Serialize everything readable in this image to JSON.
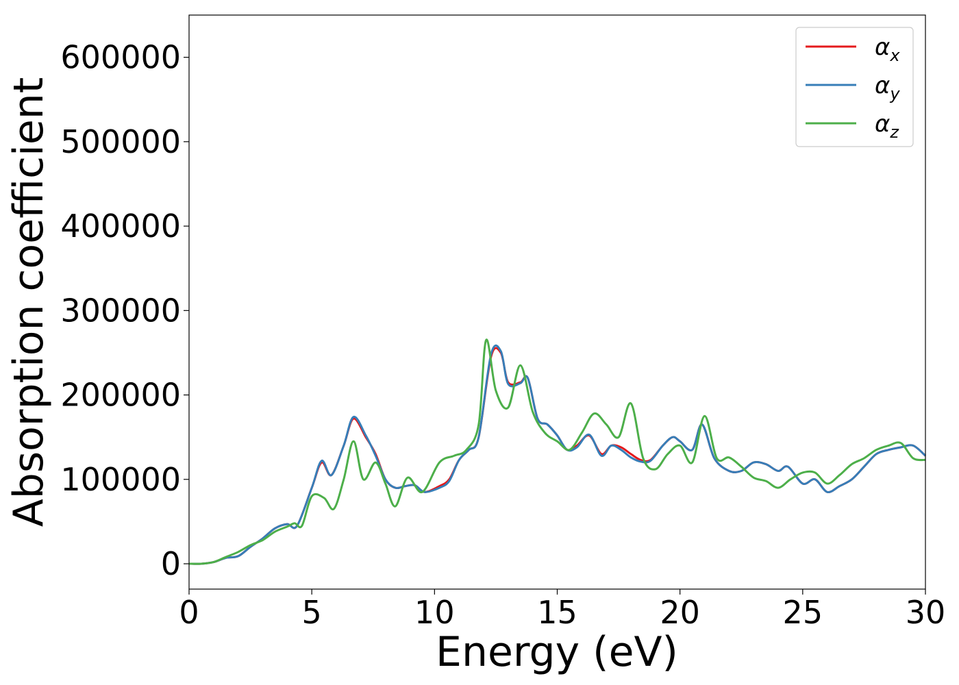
{
  "chart_data": {
    "type": "line",
    "title": "",
    "xlabel": "Energy (eV)",
    "ylabel": "Absorption coefficient",
    "xlim": [
      0,
      30
    ],
    "ylim": [
      -30000,
      650000
    ],
    "xticks": [
      0,
      5,
      10,
      15,
      20,
      25,
      30
    ],
    "xtick_labels": [
      "0",
      "5",
      "10",
      "15",
      "20",
      "25",
      "30"
    ],
    "yticks": [
      0,
      100000,
      200000,
      300000,
      400000,
      500000,
      600000
    ],
    "ytick_labels": [
      "0",
      "100000",
      "200000",
      "300000",
      "400000",
      "500000",
      "600000"
    ],
    "grid": false,
    "legend_position": "top-right",
    "series": [
      {
        "name": "αx",
        "symbol": "α",
        "subscript": "x",
        "color": "#e41a1c",
        "x": [
          0,
          0.5,
          1.0,
          1.5,
          2.0,
          2.5,
          3.0,
          3.5,
          4.0,
          4.4,
          5.0,
          5.4,
          5.8,
          6.3,
          6.7,
          7.2,
          7.6,
          8.0,
          8.4,
          8.8,
          9.2,
          9.6,
          10.2,
          10.6,
          11.0,
          11.4,
          11.8,
          12.3,
          12.7,
          13.0,
          13.5,
          13.8,
          14.2,
          14.6,
          15.0,
          15.4,
          15.8,
          16.3,
          16.8,
          17.2,
          17.6,
          18.0,
          18.4,
          18.8,
          19.3,
          19.7,
          20.0,
          20.5,
          20.9,
          21.4,
          22.0,
          22.5,
          23.0,
          23.5,
          24.0,
          24.4,
          25.0,
          25.5,
          26.0,
          26.5,
          27.0,
          27.5,
          28.0,
          28.5,
          29.0,
          29.5,
          30.0
        ],
        "values": [
          0,
          0,
          2000,
          7000,
          9000,
          20000,
          30000,
          42000,
          47000,
          45000,
          90000,
          120000,
          105000,
          140000,
          172000,
          150000,
          130000,
          100000,
          90000,
          92000,
          93000,
          85000,
          92000,
          100000,
          123000,
          135000,
          150000,
          245000,
          250000,
          215000,
          215000,
          220000,
          172000,
          165000,
          152000,
          135000,
          140000,
          152000,
          130000,
          140000,
          138000,
          130000,
          123000,
          123000,
          140000,
          150000,
          145000,
          135000,
          165000,
          125000,
          110000,
          110000,
          120000,
          118000,
          110000,
          115000,
          95000,
          100000,
          85000,
          92000,
          100000,
          115000,
          130000,
          135000,
          138000,
          140000,
          128000
        ]
      },
      {
        "name": "αy",
        "symbol": "α",
        "subscript": "y",
        "color": "#377eb8",
        "x": [
          0,
          0.5,
          1.0,
          1.5,
          2.0,
          2.5,
          3.0,
          3.5,
          4.0,
          4.4,
          5.0,
          5.4,
          5.8,
          6.3,
          6.7,
          7.2,
          7.6,
          8.0,
          8.4,
          8.8,
          9.2,
          9.6,
          10.2,
          10.6,
          11.0,
          11.4,
          11.8,
          12.3,
          12.7,
          13.0,
          13.5,
          13.8,
          14.2,
          14.6,
          15.0,
          15.4,
          15.8,
          16.3,
          16.8,
          17.2,
          17.6,
          18.0,
          18.4,
          18.8,
          19.3,
          19.7,
          20.0,
          20.5,
          20.9,
          21.4,
          22.0,
          22.5,
          23.0,
          23.5,
          24.0,
          24.4,
          25.0,
          25.5,
          26.0,
          26.5,
          27.0,
          27.5,
          28.0,
          28.5,
          29.0,
          29.5,
          30.0
        ],
        "values": [
          0,
          0,
          2000,
          7000,
          9000,
          20000,
          30000,
          42000,
          47000,
          45000,
          90000,
          122000,
          105000,
          140000,
          174000,
          152000,
          128000,
          100000,
          90000,
          92000,
          93000,
          85000,
          90000,
          98000,
          123000,
          135000,
          150000,
          248000,
          252000,
          213000,
          214000,
          220000,
          172000,
          165000,
          152000,
          135000,
          138000,
          153000,
          128000,
          140000,
          135000,
          126000,
          121000,
          122000,
          140000,
          150000,
          145000,
          135000,
          165000,
          125000,
          110000,
          110000,
          120000,
          118000,
          110000,
          115000,
          95000,
          100000,
          85000,
          92000,
          100000,
          115000,
          130000,
          135000,
          138000,
          140000,
          128000
        ]
      },
      {
        "name": "αz",
        "symbol": "α",
        "subscript": "z",
        "color": "#4daf4a",
        "x": [
          0,
          0.5,
          1.0,
          1.5,
          2.0,
          2.5,
          3.0,
          3.5,
          4.0,
          4.3,
          4.6,
          5.0,
          5.5,
          5.9,
          6.3,
          6.7,
          7.1,
          7.6,
          8.0,
          8.4,
          8.9,
          9.5,
          10.2,
          10.8,
          11.3,
          11.8,
          12.1,
          12.5,
          13.0,
          13.5,
          14.0,
          14.5,
          15.0,
          15.5,
          16.0,
          16.5,
          17.0,
          17.5,
          18.0,
          18.5,
          19.0,
          19.5,
          20.0,
          20.5,
          21.0,
          21.5,
          22.0,
          22.5,
          23.0,
          23.5,
          24.0,
          24.5,
          25.0,
          25.5,
          26.0,
          26.5,
          27.0,
          27.5,
          28.0,
          28.5,
          29.0,
          29.5,
          30.0
        ],
        "values": [
          0,
          0,
          2000,
          8000,
          14000,
          22000,
          28000,
          38000,
          44000,
          48000,
          45000,
          80000,
          78000,
          65000,
          100000,
          145000,
          100000,
          120000,
          95000,
          68000,
          102000,
          85000,
          120000,
          128000,
          135000,
          165000,
          265000,
          205000,
          185000,
          235000,
          180000,
          155000,
          145000,
          135000,
          155000,
          178000,
          165000,
          150000,
          190000,
          125000,
          112000,
          130000,
          140000,
          120000,
          175000,
          125000,
          126000,
          115000,
          102000,
          98000,
          90000,
          100000,
          108000,
          108000,
          95000,
          105000,
          118000,
          125000,
          135000,
          140000,
          143000,
          125000,
          123000
        ]
      }
    ]
  }
}
